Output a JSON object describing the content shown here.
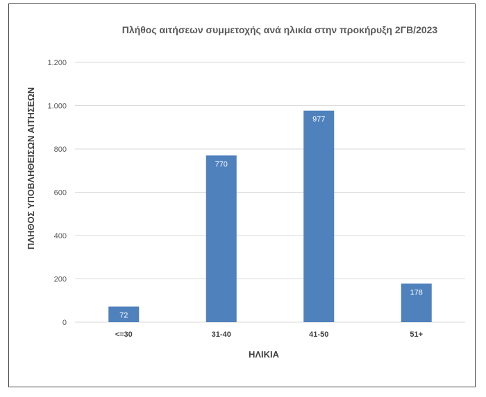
{
  "chart_data": {
    "type": "bar",
    "title": "Πλήθος αιτήσεων συμμετοχής ανά ηλικία στην προκήρυξη 2ΓΒ/2023",
    "xlabel": "ΗΛΙΚΙΑ",
    "ylabel": "ΠΛΗΘΟΣ ΥΠΟΒΛΗΘΕΙΣΩΝ ΑΙΤΗΣΕΩΝ",
    "categories": [
      "<=30",
      "31-40",
      "41-50",
      "51+"
    ],
    "values": [
      72,
      770,
      977,
      178
    ],
    "data_labels": [
      "72",
      "770",
      "977",
      "178"
    ],
    "ylim": [
      0,
      1200
    ],
    "yticks": [
      0,
      200,
      400,
      600,
      800,
      1000,
      1200
    ],
    "ytick_labels": [
      "0",
      "200",
      "400",
      "600",
      "800",
      "1.000",
      "1.200"
    ],
    "grid": true,
    "bar_color": "#4f81bd",
    "grid_color": "#d9d9d9"
  }
}
